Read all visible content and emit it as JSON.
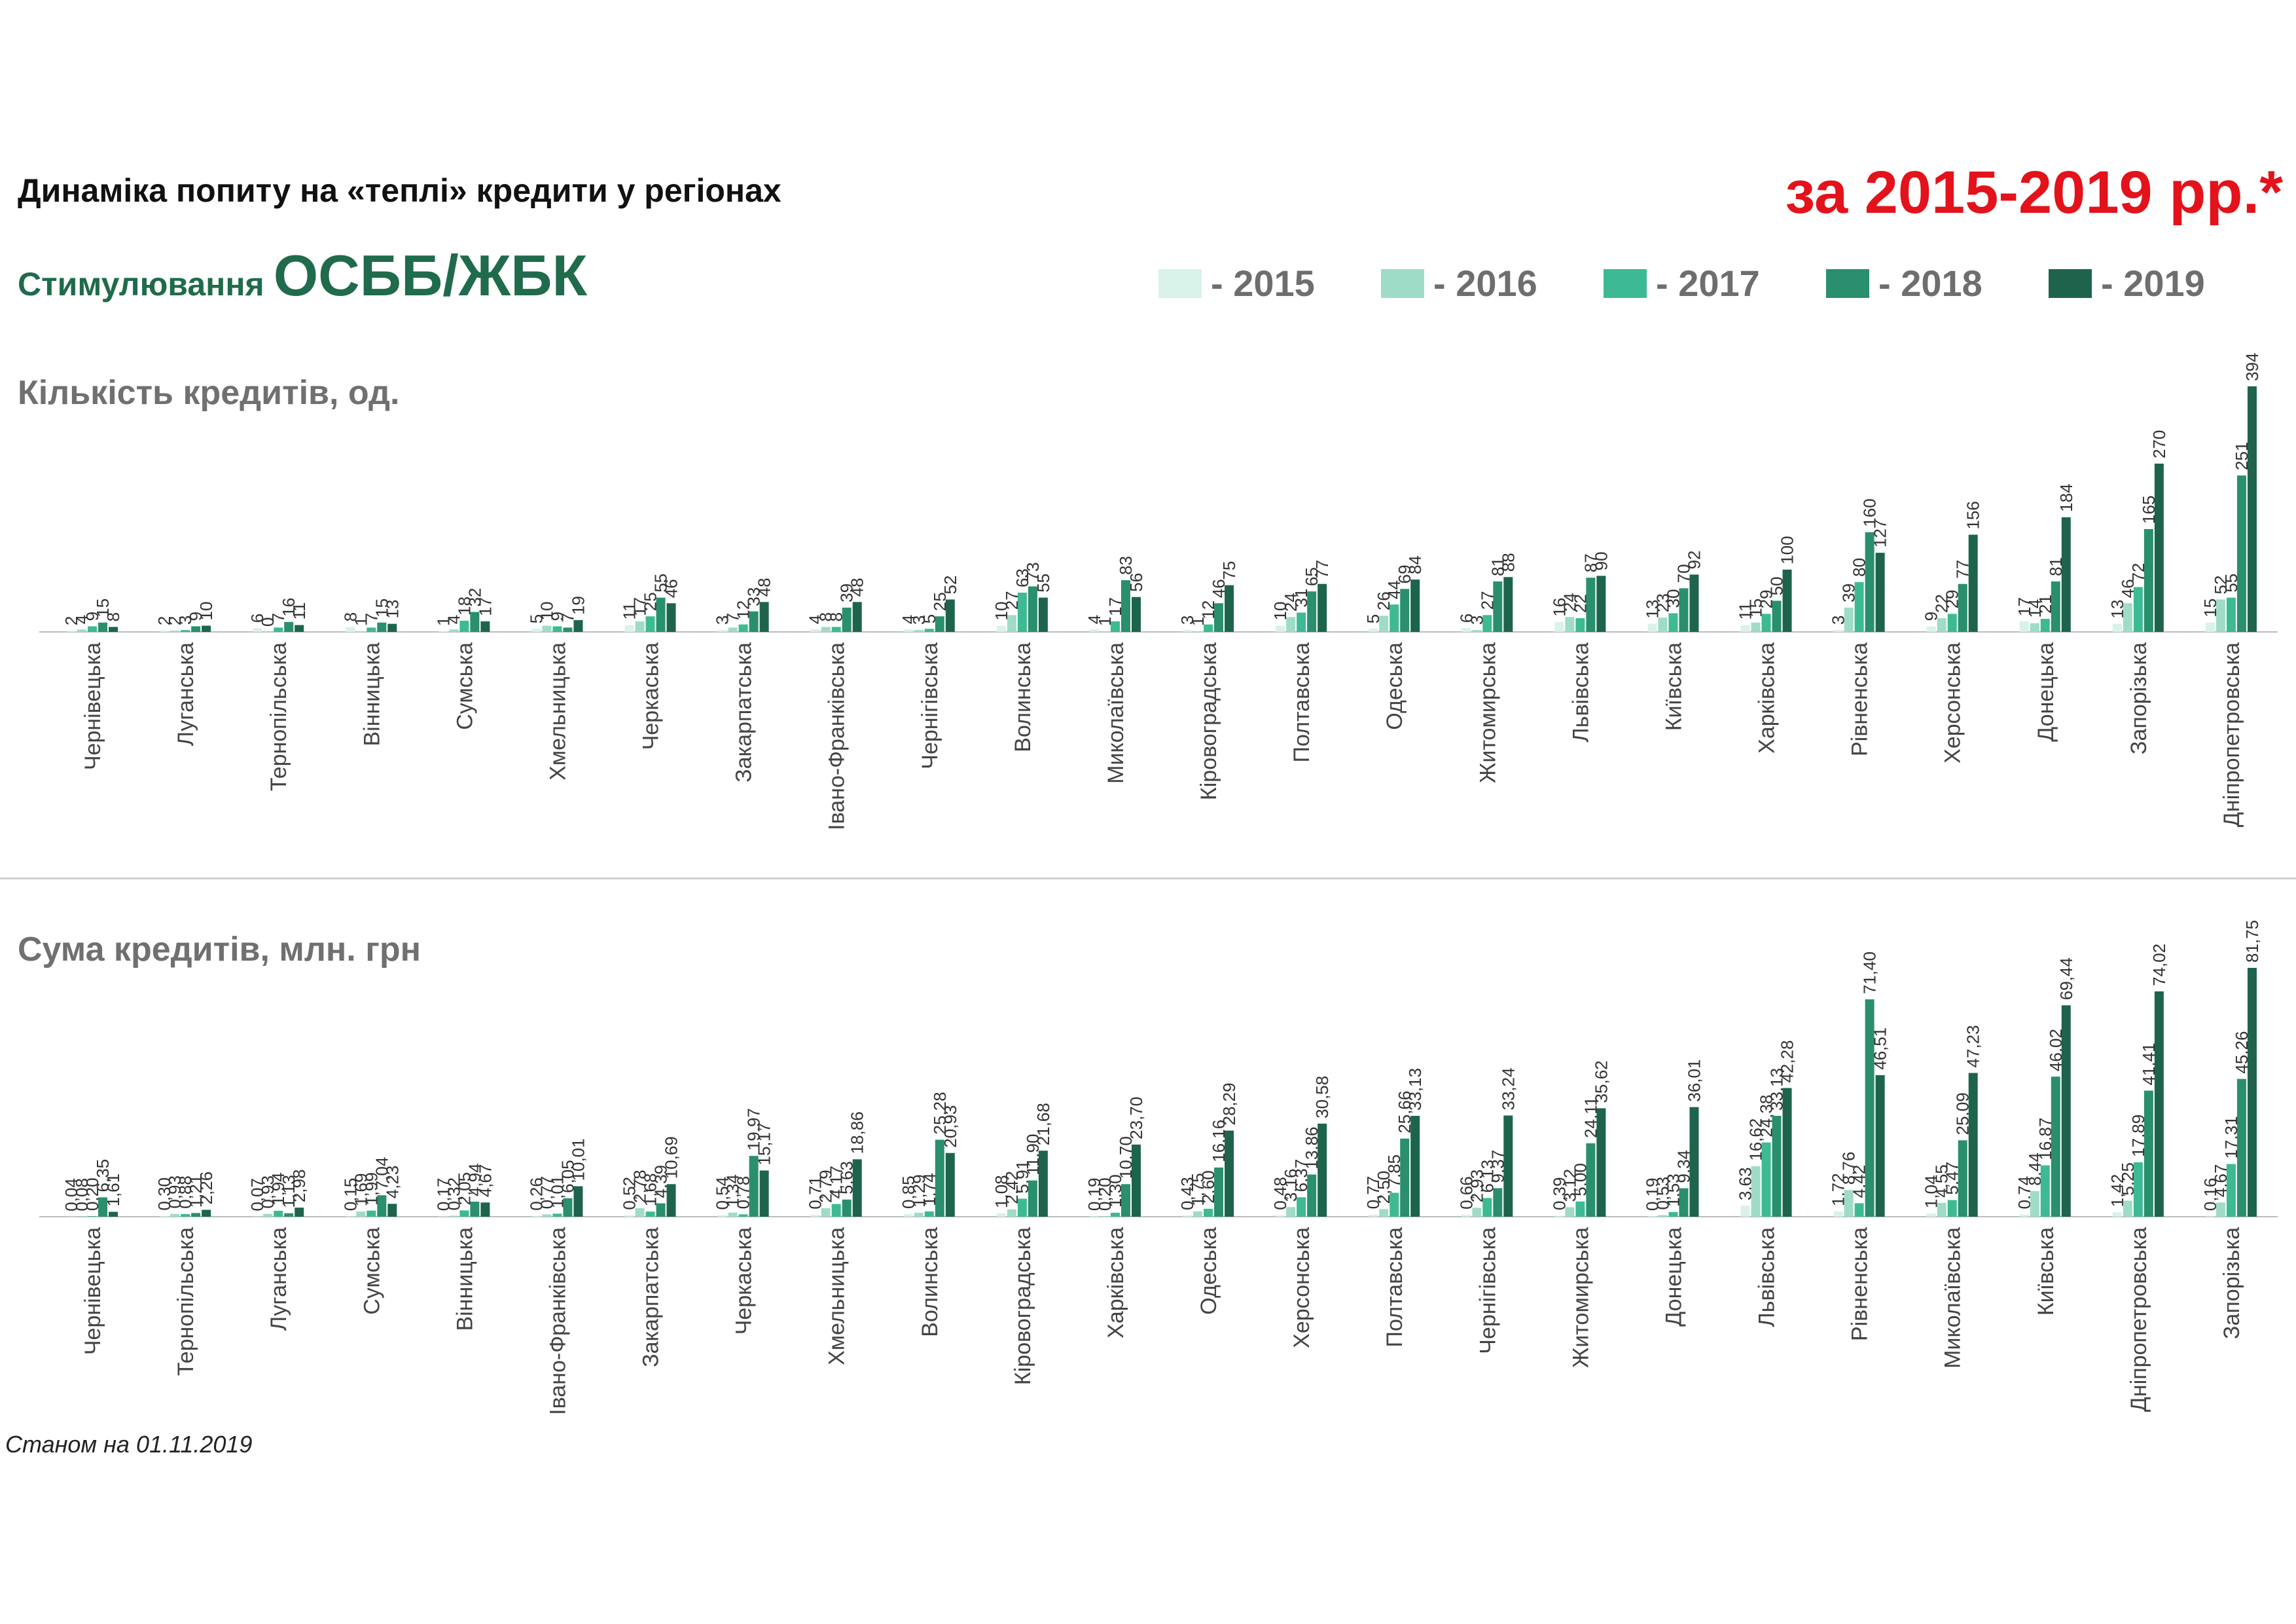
{
  "header": {
    "title": "Динаміка попиту на «теплі» кредити у регіонах",
    "period": "за 2015-2019 рр.*",
    "subtitle_small": "Стимулювання",
    "subtitle_big": "ОСББ/ЖБК",
    "footnote": "Станом на 01.11.2019"
  },
  "legend": [
    {
      "label": "- 2015",
      "color": "#d9f2ea"
    },
    {
      "label": "- 2016",
      "color": "#9fdcc8"
    },
    {
      "label": "- 2017",
      "color": "#3dba93"
    },
    {
      "label": "- 2018",
      "color": "#2a8f6e"
    },
    {
      "label": "- 2019",
      "color": "#1e644c"
    }
  ],
  "sections": {
    "count_title": "Кількість кредитів, од.",
    "sum_title": "Сума кредитів, млн. грн"
  },
  "chart_data": [
    {
      "type": "bar",
      "title": "Кількість кредитів, од.",
      "series_names": [
        "2015",
        "2016",
        "2017",
        "2018",
        "2019"
      ],
      "categories": [
        "Чернівецька",
        "Луганська",
        "Тернопільська",
        "Вінницька",
        "Сумська",
        "Хмельницька",
        "Черкаська",
        "Закарпатська",
        "Івано-Франківська",
        "Чернігівська",
        "Волинська",
        "Миколаївська",
        "Кіровоградська",
        "Полтавська",
        "Одеська",
        "Житомирська",
        "Львівська",
        "Київська",
        "Харківська",
        "Рівненська",
        "Херсонська",
        "Донецька",
        "Запорізька",
        "Дніпропетровська"
      ],
      "values": [
        [
          2,
          4,
          9,
          15,
          8
        ],
        [
          2,
          2,
          3,
          9,
          10
        ],
        [
          6,
          0,
          7,
          16,
          11
        ],
        [
          8,
          1,
          7,
          15,
          13
        ],
        [
          1,
          4,
          18,
          32,
          17
        ],
        [
          5,
          10,
          9,
          7,
          19
        ],
        [
          11,
          17,
          25,
          55,
          46
        ],
        [
          3,
          7,
          12,
          33,
          48
        ],
        [
          4,
          8,
          8,
          39,
          48
        ],
        [
          4,
          3,
          5,
          25,
          52
        ],
        [
          10,
          27,
          63,
          73,
          55
        ],
        [
          4,
          1,
          17,
          83,
          56
        ],
        [
          3,
          1,
          12,
          46,
          75
        ],
        [
          10,
          24,
          31,
          65,
          77
        ],
        [
          5,
          26,
          44,
          69,
          84
        ],
        [
          6,
          3,
          27,
          81,
          88
        ],
        [
          16,
          24,
          22,
          87,
          90
        ],
        [
          13,
          23,
          30,
          70,
          92
        ],
        [
          11,
          15,
          29,
          50,
          100
        ],
        [
          3,
          39,
          80,
          160,
          127
        ],
        [
          9,
          22,
          29,
          77,
          156
        ],
        [
          17,
          14,
          21,
          81,
          184
        ],
        [
          13,
          46,
          72,
          165,
          270
        ],
        [
          15,
          52,
          55,
          251,
          394
        ]
      ],
      "labels": [
        [
          "2",
          "4",
          "9",
          "15",
          "8"
        ],
        [
          "2",
          "2",
          "3",
          "9",
          "10"
        ],
        [
          "6",
          "0",
          "7",
          "16",
          "11"
        ],
        [
          "8",
          "1",
          "7",
          "15",
          "13"
        ],
        [
          "1",
          "4",
          "18",
          "32",
          "17"
        ],
        [
          "5",
          "10",
          "9",
          "7",
          "19"
        ],
        [
          "11",
          "17",
          "25",
          "55",
          "46"
        ],
        [
          "3",
          "7",
          "12",
          "33",
          "48"
        ],
        [
          "4",
          "8",
          "8",
          "39",
          "48"
        ],
        [
          "4",
          "3",
          "5",
          "25",
          "52"
        ],
        [
          "10",
          "27",
          "63",
          "73",
          "55"
        ],
        [
          "4",
          "1",
          "17",
          "83",
          "56"
        ],
        [
          "3",
          "1",
          "12",
          "46",
          "75"
        ],
        [
          "10",
          "24",
          "31",
          "65",
          "77"
        ],
        [
          "5",
          "26",
          "44",
          "69",
          "84"
        ],
        [
          "6",
          "3",
          "27",
          "81",
          "88"
        ],
        [
          "16",
          "24",
          "22",
          "87",
          "90"
        ],
        [
          "13",
          "23",
          "30",
          "70",
          "92"
        ],
        [
          "11",
          "15",
          "29",
          "50",
          "100"
        ],
        [
          "3",
          "39",
          "80",
          "160",
          "127"
        ],
        [
          "9",
          "22",
          "29",
          "77",
          "156"
        ],
        [
          "17",
          "14",
          "21",
          "81",
          "184"
        ],
        [
          "13",
          "46",
          "72",
          "165",
          "270"
        ],
        [
          "15",
          "52",
          "55",
          "251",
          "394"
        ]
      ],
      "ylim": [
        0,
        394
      ]
    },
    {
      "type": "bar",
      "title": "Сума кредитів, млн. грн",
      "series_names": [
        "2015",
        "2016",
        "2017",
        "2018",
        "2019"
      ],
      "categories": [
        "Чернівецька",
        "Тернопільська",
        "Луганська",
        "Сумська",
        "Вінницька",
        "Івано-Франківська",
        "Закарпатська",
        "Черкаська",
        "Хмельницька",
        "Волинська",
        "Кіровоградська",
        "Харківська",
        "Одеська",
        "Херсонська",
        "Полтавська",
        "Чернігівська",
        "Житомирська",
        "Донецька",
        "Львівська",
        "Рівненська",
        "Миколаївська",
        "Київська",
        "Дніпропетровська",
        "Запорізька"
      ],
      "values": [
        [
          0.04,
          0.08,
          0.2,
          6.35,
          1.61
        ],
        [
          0.3,
          0.93,
          0.88,
          1.21,
          2.26
        ],
        [
          0.07,
          0.93,
          1.94,
          1.13,
          2.98
        ],
        [
          0.15,
          1.69,
          1.99,
          7.04,
          4.23
        ],
        [
          0.17,
          0.32,
          2.05,
          4.94,
          4.67
        ],
        [
          0.26,
          0.77,
          1.01,
          6.05,
          10.01
        ],
        [
          0.52,
          2.78,
          1.68,
          4.39,
          10.69
        ],
        [
          0.54,
          1.34,
          0.78,
          19.97,
          15.17
        ],
        [
          0.71,
          2.79,
          4.17,
          5.63,
          18.86
        ],
        [
          0.85,
          1.29,
          1.74,
          25.28,
          20.93
        ],
        [
          1.08,
          2.42,
          5.91,
          11.9,
          21.68
        ],
        [
          0.19,
          0.2,
          1.3,
          10.7,
          23.7
        ],
        [
          0.43,
          1.75,
          2.6,
          16.16,
          28.29
        ],
        [
          0.48,
          3.16,
          6.37,
          13.86,
          30.58
        ],
        [
          0.77,
          2.5,
          7.85,
          25.66,
          33.13
        ],
        [
          0.66,
          2.93,
          6.13,
          9.37,
          33.24
        ],
        [
          0.39,
          3.12,
          5.0,
          24.11,
          35.62
        ],
        [
          0.19,
          0.53,
          1.53,
          9.34,
          36.01
        ],
        [
          3.63,
          16.62,
          24.38,
          33.13,
          42.28
        ],
        [
          1.72,
          8.76,
          4.42,
          71.4,
          46.51
        ],
        [
          1.04,
          4.55,
          5.47,
          25.09,
          47.23
        ],
        [
          0.74,
          8.44,
          16.87,
          46.02,
          69.44
        ],
        [
          1.42,
          5.25,
          17.89,
          41.41,
          74.02
        ],
        [
          0.16,
          4.67,
          17.31,
          45.26,
          81.75
        ]
      ],
      "labels": [
        [
          "0,04",
          "0,08",
          "0,20",
          "6,35",
          "1,61"
        ],
        [
          "0,30",
          "0,93",
          "0,88",
          "1,21",
          "2,26"
        ],
        [
          "0,07",
          "0,93",
          "1,94",
          "1,13",
          "2,98"
        ],
        [
          "0,15",
          "1,69",
          "1,99",
          "7,04",
          "4,23"
        ],
        [
          "0,17",
          "0,32",
          "2,05",
          "4,94",
          "4,67"
        ],
        [
          "0,26",
          "0,77",
          "1,01",
          "6,05",
          "10,01"
        ],
        [
          "0,52",
          "2,78",
          "1,68",
          "4,39",
          "10,69"
        ],
        [
          "0,54",
          "1,34",
          "0,78",
          "19,97",
          "15,17"
        ],
        [
          "0,71",
          "2,79",
          "4,17",
          "5,63",
          "18,86"
        ],
        [
          "0,85",
          "1,29",
          "1,74",
          "25,28",
          "20,93"
        ],
        [
          "1,08",
          "2,42",
          "5,91",
          "11,90",
          "21,68"
        ],
        [
          "0,19",
          "0,20",
          "1,30",
          "10,70",
          "23,70"
        ],
        [
          "0,43",
          "1,75",
          "2,60",
          "16,16",
          "28,29"
        ],
        [
          "0,48",
          "3,16",
          "6,37",
          "13,86",
          "30,58"
        ],
        [
          "0,77",
          "2,50",
          "7,85",
          "25,66",
          "33,13"
        ],
        [
          "0,66",
          "2,93",
          "6,13",
          "9,37",
          "33,24"
        ],
        [
          "0,39",
          "3,12",
          "5,00",
          "24,11",
          "35,62"
        ],
        [
          "0,19",
          "0,53",
          "1,53",
          "9,34",
          "36,01"
        ],
        [
          "3,63",
          "16,62",
          "24,38",
          "33,13",
          "42,28"
        ],
        [
          "1,72",
          "8,76",
          "4,42",
          "71,40",
          "46,51"
        ],
        [
          "1,04",
          "4,55",
          "5,47",
          "25,09",
          "47,23"
        ],
        [
          "0,74",
          "8,44",
          "16,87",
          "46,02",
          "69,44"
        ],
        [
          "1,42",
          "5,25",
          "17,89",
          "41,41",
          "74,02"
        ],
        [
          "0,16",
          "4,67",
          "17,31",
          "45,26",
          "81,75"
        ]
      ],
      "ylim": [
        0,
        81.75
      ]
    }
  ]
}
